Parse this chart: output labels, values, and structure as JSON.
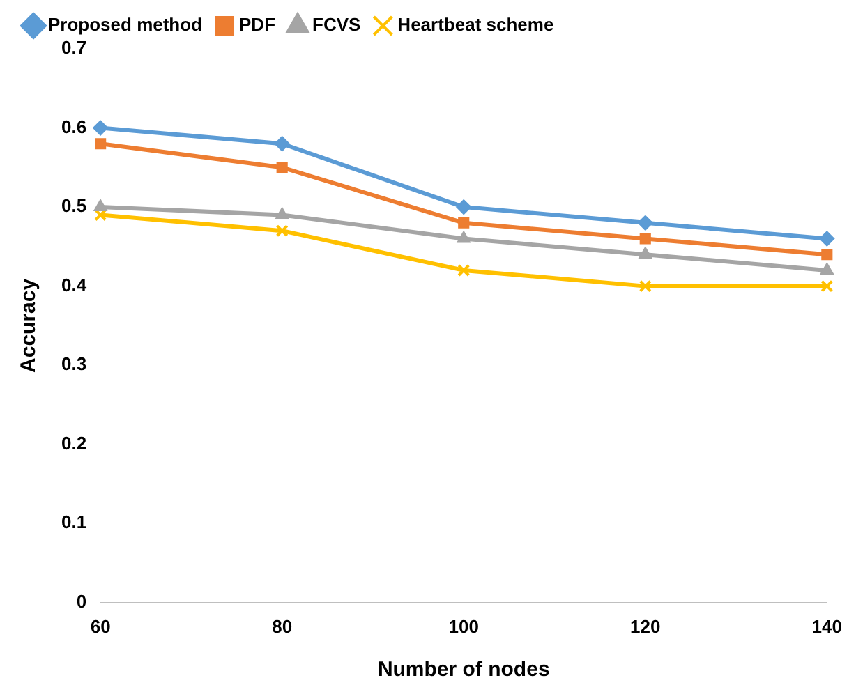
{
  "chart_data": {
    "type": "line",
    "xlabel": "Number of nodes",
    "ylabel": "Accuracy",
    "categories": [
      "60",
      "80",
      "100",
      "120",
      "140"
    ],
    "series": [
      {
        "name": "Proposed method",
        "color": "#5b9bd5",
        "marker": "diamond",
        "values": [
          0.6,
          0.58,
          0.5,
          0.48,
          0.46
        ]
      },
      {
        "name": "PDF",
        "color": "#ed7d31",
        "marker": "square",
        "values": [
          0.58,
          0.55,
          0.48,
          0.46,
          0.44
        ]
      },
      {
        "name": "FCVS",
        "color": "#a5a5a5",
        "marker": "triangle",
        "values": [
          0.5,
          0.49,
          0.46,
          0.44,
          0.42
        ]
      },
      {
        "name": "Heartbeat scheme",
        "color": "#ffc000",
        "marker": "cross",
        "values": [
          0.49,
          0.47,
          0.42,
          0.4,
          0.4
        ]
      }
    ],
    "ylim": [
      0,
      0.7
    ],
    "yticks": [
      0,
      0.1,
      0.2,
      0.3,
      0.4,
      0.5,
      0.6,
      0.7
    ],
    "grid": false,
    "legend": "top",
    "line_style": "solid"
  }
}
